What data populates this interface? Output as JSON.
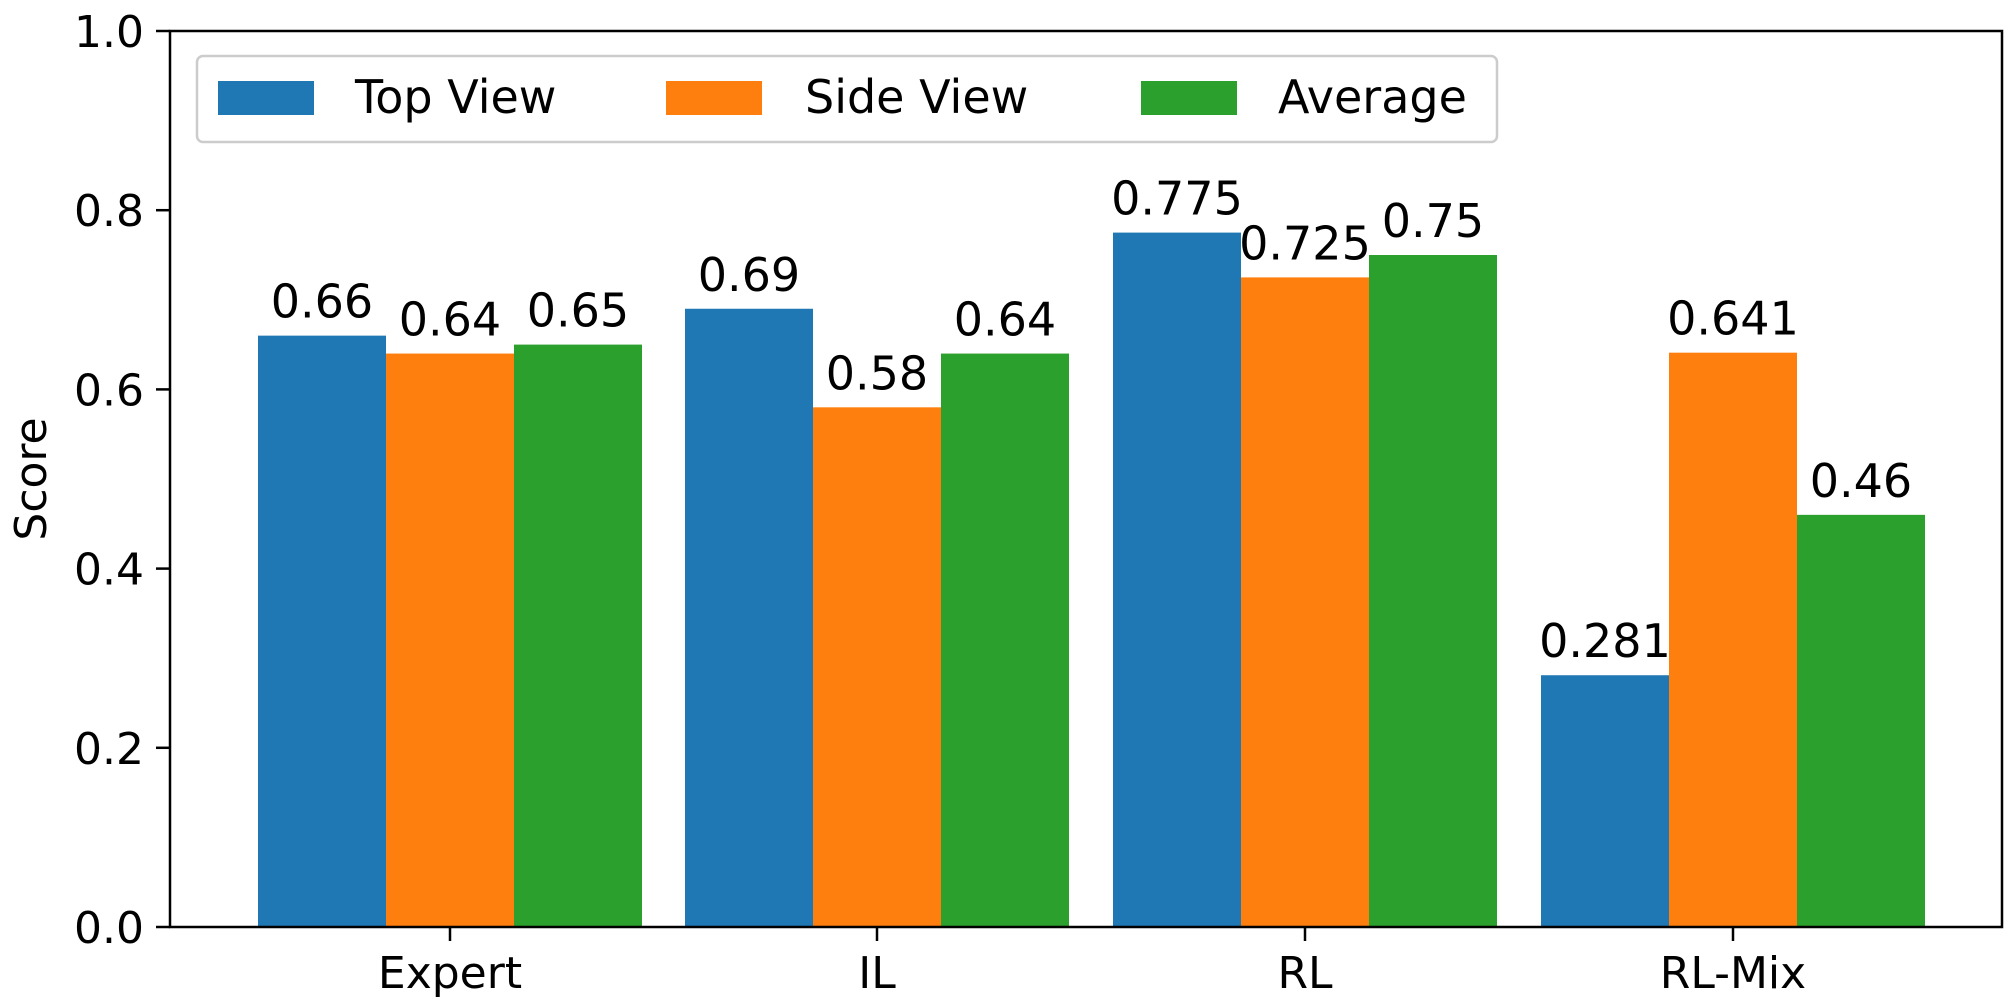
{
  "chart_data": {
    "type": "bar",
    "categories": [
      "Expert",
      "IL",
      "RL",
      "RL-Mix"
    ],
    "series": [
      {
        "name": "Top View",
        "color": "#1f77b4",
        "values": [
          0.66,
          0.69,
          0.775,
          0.281
        ],
        "labels": [
          "0.66",
          "0.69",
          "0.775",
          "0.281"
        ]
      },
      {
        "name": "Side View",
        "color": "#ff7f0e",
        "values": [
          0.64,
          0.58,
          0.725,
          0.641
        ],
        "labels": [
          "0.64",
          "0.58",
          "0.725",
          "0.641"
        ]
      },
      {
        "name": "Average",
        "color": "#2ca02c",
        "values": [
          0.65,
          0.64,
          0.75,
          0.46
        ],
        "labels": [
          "0.65",
          "0.64",
          "0.75",
          "0.46"
        ]
      }
    ],
    "ylabel": "Score",
    "xlabel": "",
    "ylim": [
      0,
      1.0
    ],
    "yticks": [
      0.0,
      0.2,
      0.4,
      0.6,
      0.8,
      1.0
    ],
    "ytick_labels": [
      "0.0",
      "0.2",
      "0.4",
      "0.6",
      "0.8",
      "1.0"
    ],
    "legend_position": "top-left",
    "grid": false
  }
}
